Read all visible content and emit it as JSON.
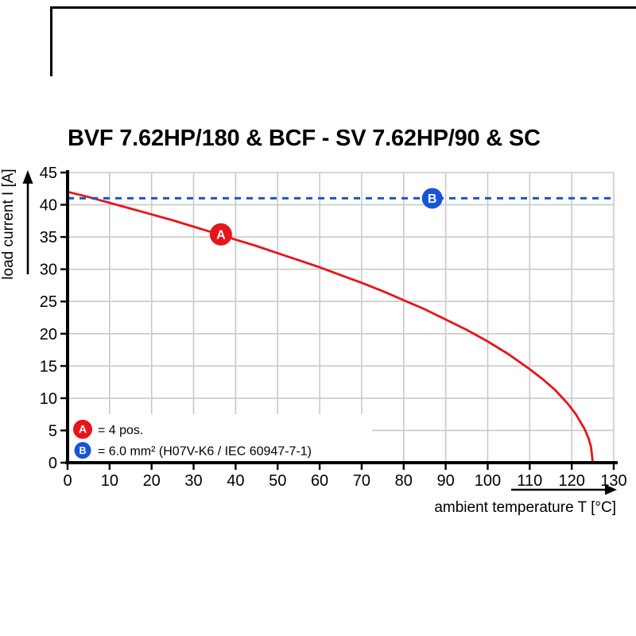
{
  "page": {
    "title": "BVF 7.62HP/180 & BCF - SV 7.62HP/90 & SC"
  },
  "chart_data": {
    "type": "line",
    "title": "BVF 7.62HP/180 & BCF - SV 7.62HP/90 & SC",
    "xlabel": "ambient temperature T [°C]",
    "ylabel": "load current I [A]",
    "xlim": [
      0,
      130
    ],
    "ylim": [
      0,
      45
    ],
    "xticks": [
      0,
      10,
      20,
      30,
      40,
      50,
      60,
      70,
      80,
      90,
      100,
      110,
      120,
      130
    ],
    "yticks": [
      0,
      5,
      10,
      15,
      20,
      25,
      30,
      35,
      40,
      45
    ],
    "grid": true,
    "legend_position": "lower-left",
    "series": [
      {
        "name": "A",
        "legend_label": "= 4 pos.",
        "color": "#e8141c",
        "line_style": "solid",
        "line_width": 2.8,
        "x": [
          0,
          5,
          10,
          15,
          20,
          25,
          30,
          35,
          40,
          45,
          50,
          55,
          60,
          65,
          70,
          75,
          80,
          85,
          90,
          95,
          100,
          105,
          110,
          113,
          116,
          119,
          121,
          123,
          124,
          124.6,
          125
        ],
        "y": [
          42,
          41.2,
          40.3,
          39.4,
          38.5,
          37.6,
          36.6,
          35.6,
          34.6,
          33.6,
          32.5,
          31.4,
          30.3,
          29.1,
          27.9,
          26.6,
          25.2,
          23.8,
          22.2,
          20.6,
          18.8,
          16.8,
          14.5,
          13,
          11.3,
          9.2,
          7.5,
          5.3,
          3.8,
          2.4,
          0
        ],
        "marker": {
          "text": "A",
          "x": 36.5,
          "y": 35.4,
          "radius": 14
        }
      },
      {
        "name": "B",
        "legend_label": "= 6.0 mm² (H07V-K6 / IEC 60947-7-1)",
        "color": "#1656d6",
        "line_style": "dashed",
        "line_width": 3,
        "x": [
          0,
          130
        ],
        "y": [
          41,
          41
        ],
        "marker": {
          "text": "B",
          "x": 86.8,
          "y": 41,
          "radius": 13
        }
      }
    ]
  },
  "colors": {
    "grid": "#c9c9c9",
    "axis": "#000000",
    "background": "#ffffff",
    "text": "#000000"
  }
}
